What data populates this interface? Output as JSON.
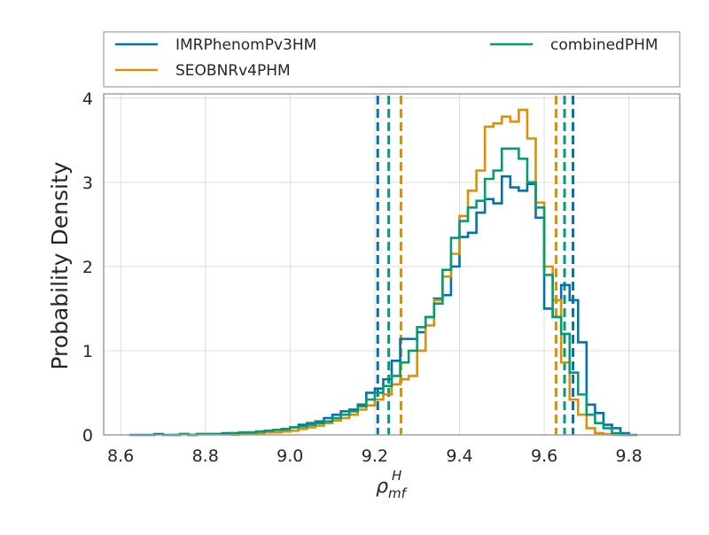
{
  "chart_data": {
    "type": "histogram",
    "title": "",
    "xlabel_base": "ρ",
    "xlabel_sub": "mf",
    "xlabel_sup": "H",
    "ylabel": "Probability Density",
    "xlim": [
      8.56,
      9.92
    ],
    "ylim": [
      0,
      4.05
    ],
    "xticks": [
      8.6,
      8.8,
      9.0,
      9.2,
      9.4,
      9.6,
      9.8
    ],
    "yticks": [
      0,
      1,
      2,
      3,
      4
    ],
    "grid": true,
    "legend_position": "top, above plot",
    "legend_columns": 2,
    "series": [
      {
        "name": "IMRPhenomPv3HM",
        "color": "#0072b2",
        "bin_edges": [
          8.62,
          8.64,
          8.66,
          8.68,
          8.7,
          8.72,
          8.74,
          8.76,
          8.78,
          8.8,
          8.82,
          8.84,
          8.86,
          8.88,
          8.9,
          8.92,
          8.94,
          8.96,
          8.98,
          9.0,
          9.02,
          9.04,
          9.06,
          9.08,
          9.1,
          9.12,
          9.14,
          9.16,
          9.18,
          9.2,
          9.22,
          9.24,
          9.26,
          9.28,
          9.3,
          9.32,
          9.34,
          9.36,
          9.38,
          9.4,
          9.42,
          9.44,
          9.46,
          9.48,
          9.5,
          9.52,
          9.54,
          9.56,
          9.58,
          9.6,
          9.62,
          9.64,
          9.66,
          9.68,
          9.7,
          9.72,
          9.74,
          9.76,
          9.78,
          9.8,
          9.82
        ],
        "densities": [
          0.0,
          0.0,
          0.0,
          0.01,
          0.0,
          0.0,
          0.01,
          0.0,
          0.01,
          0.01,
          0.01,
          0.02,
          0.02,
          0.02,
          0.03,
          0.04,
          0.05,
          0.06,
          0.06,
          0.09,
          0.12,
          0.14,
          0.16,
          0.2,
          0.24,
          0.28,
          0.3,
          0.36,
          0.5,
          0.55,
          0.66,
          0.88,
          1.14,
          1.14,
          1.22,
          1.4,
          1.62,
          1.66,
          2.0,
          2.35,
          2.4,
          2.64,
          2.8,
          2.75,
          3.07,
          2.94,
          2.9,
          2.98,
          2.58,
          1.5,
          1.4,
          1.78,
          1.6,
          1.1,
          0.36,
          0.26,
          0.12,
          0.08,
          0.02,
          0.0
        ]
      },
      {
        "name": "SEOBNRv4PHM",
        "color": "#de8f05",
        "bin_edges": [
          8.86,
          8.88,
          8.9,
          8.92,
          8.94,
          8.96,
          8.98,
          9.0,
          9.02,
          9.04,
          9.06,
          9.08,
          9.1,
          9.12,
          9.14,
          9.16,
          9.18,
          9.2,
          9.22,
          9.24,
          9.26,
          9.28,
          9.3,
          9.32,
          9.34,
          9.36,
          9.38,
          9.4,
          9.42,
          9.44,
          9.46,
          9.48,
          9.5,
          9.52,
          9.54,
          9.56,
          9.58,
          9.6,
          9.62,
          9.64,
          9.66,
          9.68,
          9.7,
          9.72,
          9.74,
          9.76,
          9.78
        ],
        "densities": [
          0.0,
          0.01,
          0.01,
          0.02,
          0.03,
          0.03,
          0.04,
          0.05,
          0.07,
          0.09,
          0.11,
          0.14,
          0.17,
          0.2,
          0.24,
          0.3,
          0.35,
          0.42,
          0.48,
          0.6,
          0.66,
          0.7,
          1.0,
          1.3,
          1.6,
          1.88,
          2.15,
          2.6,
          2.9,
          3.14,
          3.66,
          3.7,
          3.78,
          3.72,
          3.86,
          3.52,
          2.76,
          2.0,
          1.6,
          0.86,
          0.42,
          0.24,
          0.08,
          0.02,
          0.01,
          0.0
        ]
      },
      {
        "name": "combinedPHM",
        "color": "#029e73",
        "bin_edges": [
          8.72,
          8.74,
          8.76,
          8.78,
          8.8,
          8.82,
          8.84,
          8.86,
          8.88,
          8.9,
          8.92,
          8.94,
          8.96,
          8.98,
          9.0,
          9.02,
          9.04,
          9.06,
          9.08,
          9.1,
          9.12,
          9.14,
          9.16,
          9.18,
          9.2,
          9.22,
          9.24,
          9.26,
          9.28,
          9.3,
          9.32,
          9.34,
          9.36,
          9.38,
          9.4,
          9.42,
          9.44,
          9.46,
          9.48,
          9.5,
          9.52,
          9.54,
          9.56,
          9.58,
          9.6,
          9.62,
          9.64,
          9.66,
          9.68,
          9.7,
          9.72,
          9.74,
          9.76,
          9.78,
          9.8
        ],
        "densities": [
          0.0,
          0.01,
          0.0,
          0.01,
          0.01,
          0.01,
          0.01,
          0.02,
          0.03,
          0.03,
          0.04,
          0.05,
          0.06,
          0.07,
          0.09,
          0.1,
          0.12,
          0.14,
          0.16,
          0.2,
          0.24,
          0.28,
          0.34,
          0.42,
          0.5,
          0.58,
          0.7,
          0.86,
          1.0,
          1.28,
          1.4,
          1.56,
          1.96,
          2.34,
          2.54,
          2.7,
          2.78,
          3.04,
          3.14,
          3.4,
          3.4,
          3.28,
          3.0,
          2.7,
          1.9,
          1.4,
          1.2,
          0.74,
          0.48,
          0.24,
          0.14,
          0.08,
          0.02,
          0.0
        ]
      }
    ],
    "vlines": [
      {
        "x": 9.207,
        "color": "#0072b2"
      },
      {
        "x": 9.233,
        "color": "#029e73"
      },
      {
        "x": 9.262,
        "color": "#de8f05"
      },
      {
        "x": 9.628,
        "color": "#de8f05"
      },
      {
        "x": 9.648,
        "color": "#029e73"
      },
      {
        "x": 9.668,
        "color": "#0072b2"
      }
    ]
  }
}
